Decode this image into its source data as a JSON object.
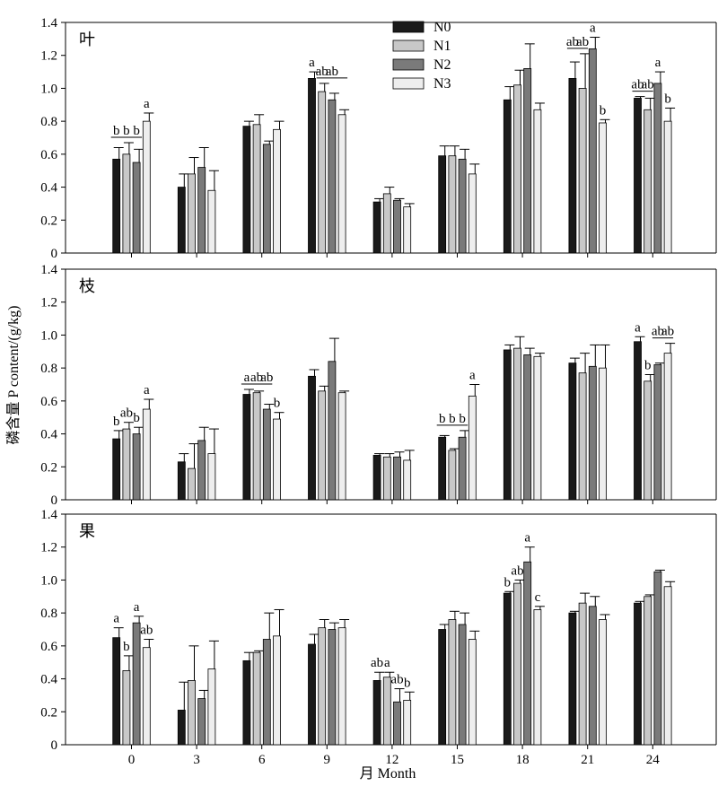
{
  "chart_data": {
    "type": "bar",
    "xlabel": "月 Month",
    "ylabel": "磷含量 P content/(g/kg)",
    "categories": [
      "0",
      "3",
      "6",
      "9",
      "12",
      "15",
      "18",
      "21",
      "24"
    ],
    "ylim": [
      0,
      1.4
    ],
    "yticks": [
      "0",
      "0.2",
      "0.4",
      "0.6",
      "0.8",
      "1.0",
      "1.2",
      "1.4"
    ],
    "legend": {
      "placement": "top-center",
      "entries": [
        "N0",
        "N1",
        "N2",
        "N3"
      ]
    },
    "series_colors": {
      "N0": "#1a1a1a",
      "N1": "#c8c8c8",
      "N2": "#7a7a7a",
      "N3": "#eeeeee"
    },
    "panels": [
      {
        "label": "叶",
        "series": [
          {
            "name": "N0",
            "values": [
              0.57,
              0.4,
              0.77,
              1.06,
              0.31,
              0.59,
              0.93,
              1.06,
              0.94
            ],
            "errors": [
              0.07,
              0.08,
              0.03,
              0.04,
              0.02,
              0.06,
              0.08,
              0.1,
              0.01
            ]
          },
          {
            "name": "N1",
            "values": [
              0.6,
              0.48,
              0.78,
              0.98,
              0.36,
              0.59,
              1.02,
              1.0,
              0.87
            ],
            "errors": [
              0.07,
              0.1,
              0.06,
              0.05,
              0.04,
              0.06,
              0.09,
              0.21,
              0.07
            ]
          },
          {
            "name": "N2",
            "values": [
              0.55,
              0.52,
              0.66,
              0.93,
              0.32,
              0.57,
              1.12,
              1.24,
              1.03
            ],
            "errors": [
              0.08,
              0.12,
              0.02,
              0.04,
              0.01,
              0.06,
              0.15,
              0.07,
              0.07
            ]
          },
          {
            "name": "N3",
            "values": [
              0.8,
              0.38,
              0.75,
              0.84,
              0.28,
              0.48,
              0.87,
              0.79,
              0.8
            ],
            "errors": [
              0.05,
              0.12,
              0.05,
              0.03,
              0.02,
              0.06,
              0.04,
              0.02,
              0.08
            ]
          }
        ],
        "letters": [
          {
            "category": "0",
            "marks": [
              "b",
              "b",
              "b",
              "a"
            ],
            "groupline": [
              0,
              2
            ]
          },
          {
            "category": "9",
            "marks": [
              "a",
              "ab",
              "ab",
              ""
            ],
            "letter_over": [
              0,
              1,
              2
            ],
            "groupline": [
              1,
              3
            ],
            "line_text": [
              "ab",
              "ab"
            ]
          },
          {
            "category": "21",
            "marks": [
              "ab",
              "ab",
              "a",
              "b"
            ],
            "groupline": [
              0,
              1
            ]
          },
          {
            "category": "24",
            "marks": [
              "ab",
              "ab",
              "a",
              "b"
            ],
            "groupline": [
              0,
              1
            ]
          }
        ]
      },
      {
        "label": "枝",
        "series": [
          {
            "name": "N0",
            "values": [
              0.37,
              0.23,
              0.64,
              0.75,
              0.27,
              0.38,
              0.91,
              0.83,
              0.96
            ],
            "errors": [
              0.05,
              0.05,
              0.03,
              0.04,
              0.01,
              0.01,
              0.03,
              0.03,
              0.03
            ]
          },
          {
            "name": "N1",
            "values": [
              0.43,
              0.19,
              0.65,
              0.66,
              0.26,
              0.3,
              0.92,
              0.77,
              0.72
            ],
            "errors": [
              0.04,
              0.15,
              0.01,
              0.03,
              0.02,
              0.01,
              0.07,
              0.12,
              0.04
            ]
          },
          {
            "name": "N2",
            "values": [
              0.4,
              0.36,
              0.55,
              0.84,
              0.26,
              0.38,
              0.88,
              0.81,
              0.82
            ],
            "errors": [
              0.04,
              0.08,
              0.03,
              0.14,
              0.03,
              0.04,
              0.04,
              0.13,
              0.01
            ]
          },
          {
            "name": "N3",
            "values": [
              0.55,
              0.28,
              0.49,
              0.65,
              0.24,
              0.63,
              0.87,
              0.8,
              0.89
            ],
            "errors": [
              0.06,
              0.15,
              0.04,
              0.01,
              0.06,
              0.07,
              0.02,
              0.14,
              0.06
            ]
          }
        ],
        "letters": [
          {
            "category": "0",
            "marks": [
              "b",
              "ab",
              "b",
              "a"
            ]
          },
          {
            "category": "6",
            "marks": [
              "a",
              "ab",
              "ab",
              "b"
            ],
            "groupline": [
              0,
              2
            ]
          },
          {
            "category": "15",
            "marks": [
              "b",
              "b",
              "b",
              "a"
            ],
            "groupline": [
              0,
              2
            ]
          },
          {
            "category": "24",
            "marks": [
              "a",
              "b",
              "ab",
              "ab"
            ],
            "groupline": [
              2,
              3
            ]
          }
        ]
      },
      {
        "label": "果",
        "series": [
          {
            "name": "N0",
            "values": [
              0.65,
              0.21,
              0.51,
              0.61,
              0.39,
              0.7,
              0.92,
              0.8,
              0.86
            ],
            "errors": [
              0.06,
              0.17,
              0.05,
              0.06,
              0.05,
              0.03,
              0.01,
              0.01,
              0.01
            ]
          },
          {
            "name": "N1",
            "values": [
              0.45,
              0.39,
              0.56,
              0.71,
              0.41,
              0.76,
              0.98,
              0.86,
              0.9
            ],
            "errors": [
              0.09,
              0.21,
              0.01,
              0.05,
              0.03,
              0.05,
              0.02,
              0.06,
              0.01
            ]
          },
          {
            "name": "N2",
            "values": [
              0.74,
              0.28,
              0.64,
              0.7,
              0.26,
              0.73,
              1.11,
              0.84,
              1.05
            ],
            "errors": [
              0.04,
              0.05,
              0.16,
              0.04,
              0.08,
              0.07,
              0.09,
              0.06,
              0.01
            ]
          },
          {
            "name": "N3",
            "values": [
              0.59,
              0.46,
              0.66,
              0.71,
              0.27,
              0.64,
              0.82,
              0.76,
              0.96
            ],
            "errors": [
              0.05,
              0.17,
              0.16,
              0.05,
              0.05,
              0.05,
              0.02,
              0.03,
              0.03
            ]
          }
        ],
        "letters": [
          {
            "category": "0",
            "marks": [
              "a",
              "b",
              "a",
              "ab"
            ]
          },
          {
            "category": "12",
            "marks": [
              "ab",
              "a",
              "ab",
              "b"
            ]
          },
          {
            "category": "18",
            "marks": [
              "b",
              "ab",
              "a",
              "c"
            ]
          }
        ]
      }
    ]
  }
}
